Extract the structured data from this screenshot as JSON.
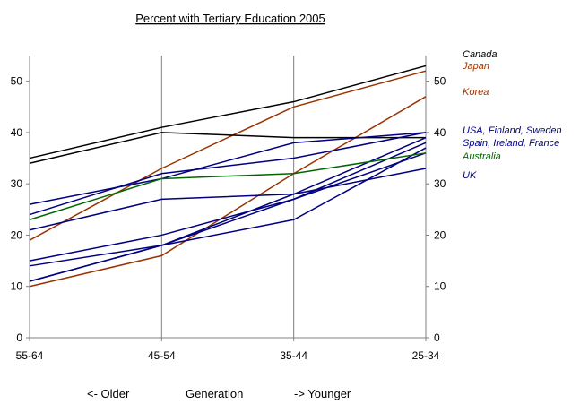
{
  "chart_data": {
    "type": "line",
    "title": "Percent with Tertiary Education 2005",
    "categories": [
      "55-64",
      "45-54",
      "35-44",
      "25-34"
    ],
    "ylim": [
      0,
      55
    ],
    "yticks": [
      0,
      10,
      20,
      30,
      40,
      50
    ],
    "grid": "vertical",
    "series": [
      {
        "name": "Canada",
        "color": "#000000",
        "values": [
          35,
          41,
          46,
          53
        ]
      },
      {
        "name": "Japan",
        "color": "#993300",
        "values": [
          19,
          33,
          45,
          52
        ]
      },
      {
        "name": "Korea",
        "color": "#993300",
        "values": [
          10,
          16,
          32,
          47
        ]
      },
      {
        "color": "#000000",
        "values": [
          34,
          40,
          39,
          39
        ]
      },
      {
        "color": "#000080",
        "values": [
          26,
          31,
          38,
          40
        ]
      },
      {
        "color": "#000080",
        "values": [
          24,
          32,
          35,
          40
        ]
      },
      {
        "color": "#000080",
        "values": [
          21,
          27,
          28,
          39
        ]
      },
      {
        "color": "#000080",
        "values": [
          14,
          18,
          27,
          38
        ]
      },
      {
        "color": "#000080",
        "values": [
          15,
          20,
          27,
          36
        ]
      },
      {
        "color": "#000080",
        "values": [
          11,
          18,
          23,
          37
        ]
      },
      {
        "name": "Australia",
        "color": "#006600",
        "values": [
          23,
          31,
          32,
          36
        ]
      },
      {
        "name": "UK",
        "color": "#000080",
        "values": [
          11,
          18,
          28,
          33
        ]
      }
    ],
    "legend": [
      {
        "text": "Canada",
        "color": "#000000"
      },
      {
        "text": "Japan",
        "color": "#993300"
      },
      {
        "text": "Korea",
        "color": "#993300"
      },
      {
        "text": "USA, Finland, Sweden",
        "color": "#000080"
      },
      {
        "text": "Spain, Ireland, France",
        "color": "#000080"
      },
      {
        "text": "Australia",
        "color": "#006600"
      },
      {
        "text": "UK",
        "color": "#000080"
      }
    ],
    "footer": {
      "left": "<- Older",
      "center": "Generation",
      "right": "-> Younger"
    }
  }
}
